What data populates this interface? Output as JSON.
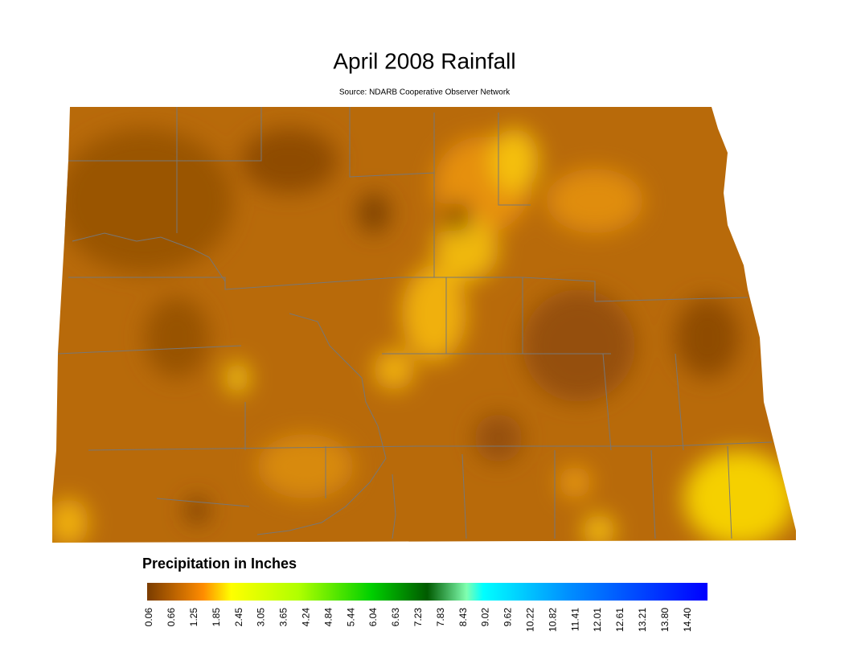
{
  "title": "April 2008 Rainfall",
  "subtitle": "Source: NDARB Cooperative Observer Network",
  "legend": {
    "title": "Precipitation in Inches",
    "ticks": [
      "0.06",
      "0.66",
      "1.25",
      "1.85",
      "2.45",
      "3.05",
      "3.65",
      "4.24",
      "4.84",
      "5.44",
      "6.04",
      "6.63",
      "7.23",
      "7.83",
      "8.43",
      "9.02",
      "9.62",
      "10.22",
      "10.82",
      "11.41",
      "12.01",
      "12.61",
      "13.21",
      "13.80",
      "14.40"
    ]
  }
}
